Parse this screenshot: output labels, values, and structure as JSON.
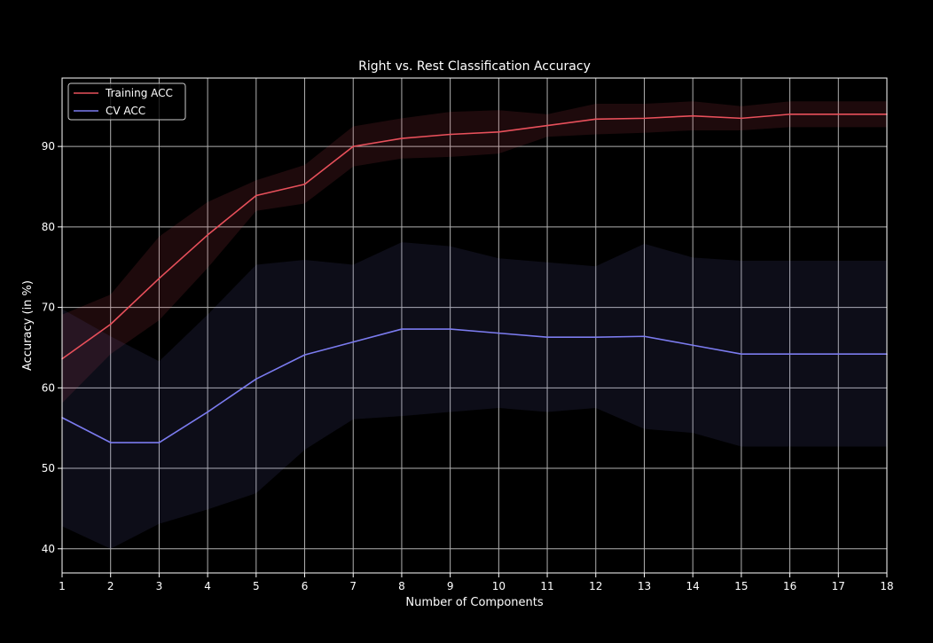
{
  "chart_data": {
    "type": "line",
    "title": "Right vs. Rest Classification Accuracy",
    "xlabel": "Number of Components",
    "ylabel": "Accuracy (in %)",
    "x": [
      1,
      2,
      3,
      4,
      5,
      6,
      7,
      8,
      9,
      10,
      11,
      12,
      13,
      14,
      15,
      16,
      17,
      18
    ],
    "xlim": [
      1,
      18
    ],
    "ylim": [
      37,
      98.5
    ],
    "yticks": [
      40,
      50,
      60,
      70,
      80,
      90
    ],
    "grid": true,
    "legend": "top-left",
    "series": [
      {
        "name": "Training ACC",
        "color": "#e8505b",
        "values": [
          63.6,
          67.9,
          73.6,
          79.0,
          83.9,
          85.3,
          90.0,
          91.0,
          91.5,
          91.8,
          92.6,
          93.4,
          93.5,
          93.8,
          93.5,
          94.0,
          94.0,
          94.0
        ],
        "upper": [
          69.1,
          71.6,
          78.8,
          83.1,
          85.8,
          87.7,
          92.5,
          93.5,
          94.3,
          94.5,
          94.0,
          95.3,
          95.3,
          95.6,
          95.0,
          95.6,
          95.6,
          95.6
        ],
        "lower": [
          58.1,
          64.2,
          68.4,
          74.9,
          82.0,
          82.9,
          87.5,
          88.5,
          88.7,
          89.1,
          91.2,
          91.5,
          91.7,
          92.0,
          92.0,
          92.4,
          92.4,
          92.4
        ]
      },
      {
        "name": "CV ACC",
        "color": "#7b7bef",
        "values": [
          56.3,
          53.2,
          53.2,
          57.0,
          61.1,
          64.1,
          65.7,
          67.3,
          67.3,
          66.8,
          66.3,
          66.3,
          66.4,
          65.3,
          64.2,
          64.2,
          64.2,
          64.2
        ],
        "upper": [
          69.8,
          66.4,
          63.3,
          69.1,
          75.3,
          75.9,
          75.3,
          78.1,
          77.6,
          76.1,
          75.6,
          75.1,
          77.9,
          76.2,
          75.8,
          75.8,
          75.8,
          75.8
        ],
        "lower": [
          42.8,
          40.0,
          43.1,
          44.9,
          46.9,
          52.3,
          56.1,
          56.5,
          57.0,
          57.5,
          57.0,
          57.5,
          54.9,
          54.4,
          52.7,
          52.7,
          52.7,
          52.7
        ]
      }
    ]
  }
}
